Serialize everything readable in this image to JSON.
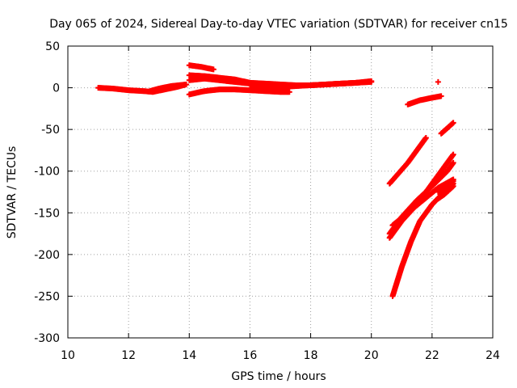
{
  "chart_data": {
    "type": "scatter",
    "title": "Day 065 of 2024, Sidereal Day-to-day VTEC variation (SDTVAR) for receiver cn15",
    "xlabel": "GPS time / hours",
    "ylabel": "SDTVAR / TECUs",
    "xlim": [
      10,
      24
    ],
    "ylim": [
      -300,
      50
    ],
    "xticks": [
      10,
      12,
      14,
      16,
      18,
      20,
      22,
      24
    ],
    "yticks": [
      -300,
      -250,
      -200,
      -150,
      -100,
      -50,
      0,
      50
    ],
    "grid": true,
    "marker": "plus",
    "marker_color": "#ff0000",
    "series": [
      {
        "x": [
          11.0,
          11.5,
          12.0,
          12.5,
          12.8,
          13.2,
          13.6,
          13.9
        ],
        "y": [
          0,
          -1,
          -3,
          -4,
          -5,
          -2,
          1,
          4
        ]
      },
      {
        "x": [
          12.7,
          13.0,
          13.4,
          13.9
        ],
        "y": [
          -4,
          -1,
          2,
          4
        ]
      },
      {
        "x": [
          14.0,
          14.4,
          14.8
        ],
        "y": [
          27,
          25,
          22
        ]
      },
      {
        "x": [
          14.0,
          14.5,
          15.0,
          15.5,
          16.0,
          16.5,
          17.0,
          17.5,
          18.0,
          18.5,
          19.0,
          19.5,
          20.0
        ],
        "y": [
          15,
          14,
          12,
          10,
          6,
          5,
          4,
          3,
          3,
          4,
          5,
          6,
          7
        ]
      },
      {
        "x": [
          14.0,
          14.5,
          15.0,
          15.5,
          16.0
        ],
        "y": [
          9,
          11,
          9,
          7,
          5
        ]
      },
      {
        "x": [
          14.0,
          14.5,
          15.0,
          15.5,
          16.0,
          16.5,
          17.0,
          17.3
        ],
        "y": [
          -8,
          -4,
          -2,
          -2,
          -3,
          -4,
          -5,
          -5
        ]
      },
      {
        "x": [
          16.0,
          16.5,
          17.0,
          17.5,
          18.0,
          18.5,
          19.0,
          19.5,
          20.0
        ],
        "y": [
          -1,
          0,
          1,
          2,
          3,
          4,
          5,
          6,
          8
        ]
      },
      {
        "x": [
          21.2,
          21.6,
          22.0,
          22.3
        ],
        "y": [
          -20,
          -15,
          -12,
          -10
        ]
      },
      {
        "x": [
          22.2
        ],
        "y": [
          7
        ]
      },
      {
        "x": [
          20.6,
          21.2,
          21.8
        ],
        "y": [
          -115,
          -90,
          -60
        ]
      },
      {
        "x": [
          20.6,
          21.0,
          21.5,
          22.0,
          22.5,
          22.7
        ],
        "y": [
          -180,
          -160,
          -140,
          -115,
          -90,
          -80
        ]
      },
      {
        "x": [
          20.6,
          21.0,
          21.5,
          22.0,
          22.5,
          22.7
        ],
        "y": [
          -175,
          -155,
          -135,
          -118,
          -100,
          -90
        ]
      },
      {
        "x": [
          20.7,
          21.2,
          21.7,
          22.2,
          22.7
        ],
        "y": [
          -165,
          -150,
          -135,
          -120,
          -110
        ]
      },
      {
        "x": [
          20.7,
          21.0,
          21.3,
          21.6,
          22.0,
          22.4,
          22.7
        ],
        "y": [
          -250,
          -215,
          -185,
          -160,
          -140,
          -125,
          -115
        ]
      },
      {
        "x": [
          22.2,
          22.4,
          22.7
        ],
        "y": [
          -133,
          -128,
          -118
        ]
      },
      {
        "x": [
          22.2,
          22.4,
          22.7
        ],
        "y": [
          -125,
          -120,
          -112
        ]
      },
      {
        "x": [
          22.3,
          22.7
        ],
        "y": [
          -55,
          -42
        ]
      }
    ]
  }
}
